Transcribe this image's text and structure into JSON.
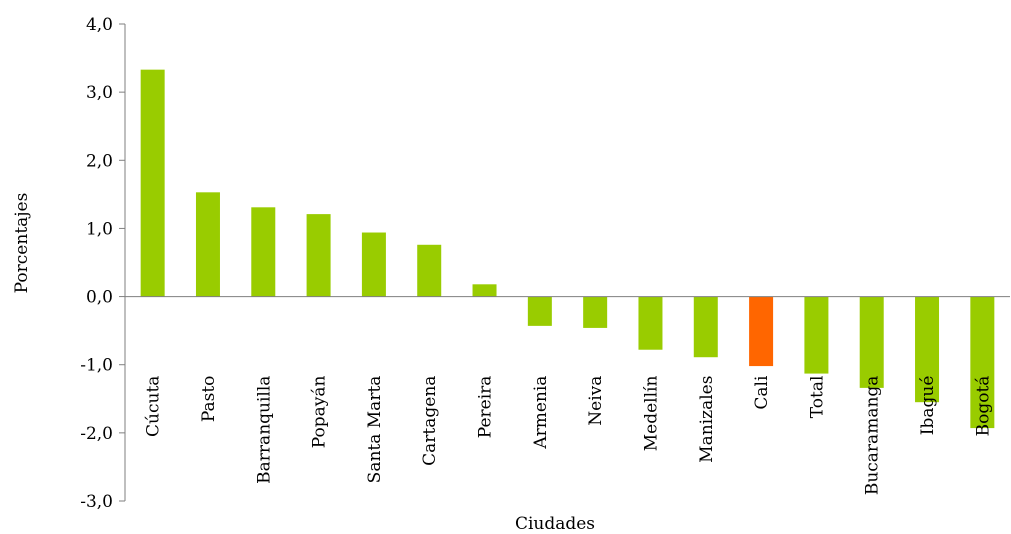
{
  "chart_data": {
    "type": "bar",
    "title": "",
    "xlabel": "Ciudades",
    "ylabel": "Porcentajes",
    "ylim": [
      -3,
      4
    ],
    "yticks": [
      "-3,0",
      "-2,0",
      "-1,0",
      "0,0",
      "1,0",
      "2,0",
      "3,0",
      "4,0"
    ],
    "ytick_values": [
      -3,
      -2,
      -1,
      0,
      1,
      2,
      3,
      4
    ],
    "categories": [
      "Cúcuta",
      "Pasto",
      "Barranquilla",
      "Popayán",
      "Santa Marta",
      "Cartagena",
      "Pereira",
      "Armenia",
      "Neiva",
      "Medellín",
      "Manizales",
      "Cali",
      "Total",
      "Bucaramanga",
      "Ibagué",
      "Bogotá"
    ],
    "values": [
      3.33,
      1.53,
      1.31,
      1.21,
      0.94,
      0.76,
      0.18,
      -0.43,
      -0.46,
      -0.78,
      -0.89,
      -1.02,
      -1.13,
      -1.34,
      -1.55,
      -1.93
    ],
    "bar_colors": [
      "#99cc00",
      "#99cc00",
      "#99cc00",
      "#99cc00",
      "#99cc00",
      "#99cc00",
      "#99cc00",
      "#99cc00",
      "#99cc00",
      "#99cc00",
      "#99cc00",
      "#ff6600",
      "#99cc00",
      "#99cc00",
      "#99cc00",
      "#99cc00"
    ],
    "grid": false,
    "legend": "none"
  }
}
